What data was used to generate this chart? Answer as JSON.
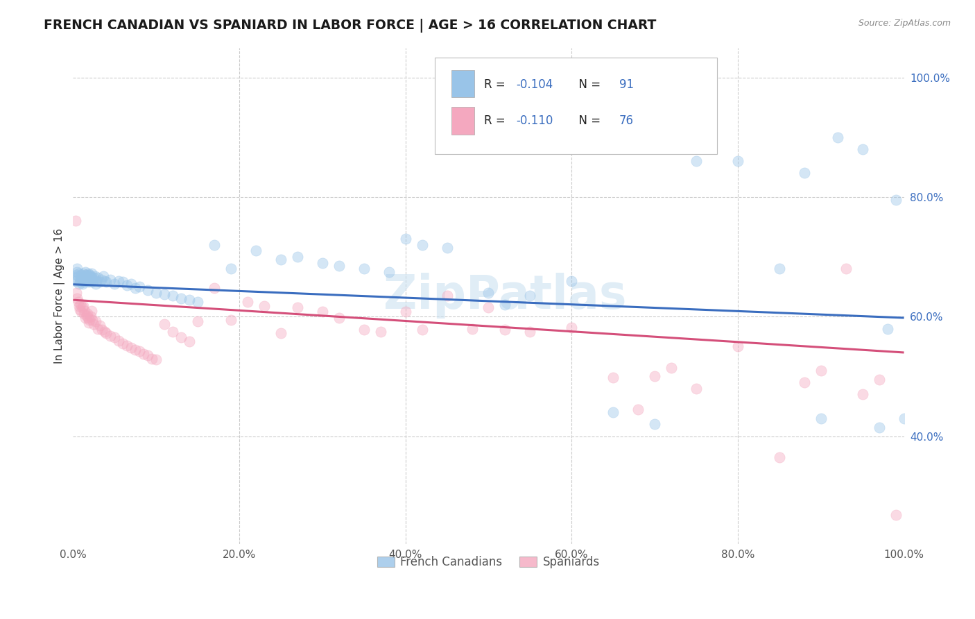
{
  "title": "FRENCH CANADIAN VS SPANIARD IN LABOR FORCE | AGE > 16 CORRELATION CHART",
  "source": "Source: ZipAtlas.com",
  "ylabel": "In Labor Force | Age > 16",
  "x_min": 0.0,
  "x_max": 1.0,
  "y_min": 0.22,
  "y_max": 1.05,
  "background_color": "#ffffff",
  "grid_color": "#cccccc",
  "blue_color": "#99c4e8",
  "pink_color": "#f4a8bf",
  "blue_line_color": "#3a6dbf",
  "pink_line_color": "#d44f7a",
  "legend_R_blue": "R = ",
  "legend_val_blue": "-0.104",
  "legend_N_label": "N = ",
  "legend_N_blue": "91",
  "legend_R_pink": "R = ",
  "legend_val_pink": "-0.110",
  "legend_N_pink": "76",
  "blue_label": "French Canadians",
  "pink_label": "Spaniards",
  "blue_scatter_x": [
    0.002,
    0.003,
    0.004,
    0.005,
    0.005,
    0.006,
    0.007,
    0.007,
    0.008,
    0.009,
    0.01,
    0.01,
    0.011,
    0.011,
    0.012,
    0.012,
    0.013,
    0.013,
    0.014,
    0.015,
    0.015,
    0.016,
    0.016,
    0.017,
    0.017,
    0.018,
    0.018,
    0.019,
    0.02,
    0.02,
    0.021,
    0.021,
    0.022,
    0.022,
    0.023,
    0.024,
    0.025,
    0.026,
    0.027,
    0.028,
    0.03,
    0.032,
    0.034,
    0.036,
    0.038,
    0.04,
    0.045,
    0.05,
    0.055,
    0.06,
    0.065,
    0.07,
    0.075,
    0.08,
    0.09,
    0.1,
    0.11,
    0.12,
    0.13,
    0.14,
    0.15,
    0.17,
    0.19,
    0.22,
    0.25,
    0.27,
    0.3,
    0.32,
    0.35,
    0.38,
    0.4,
    0.42,
    0.45,
    0.5,
    0.52,
    0.55,
    0.6,
    0.65,
    0.7,
    0.72,
    0.75,
    0.8,
    0.85,
    0.88,
    0.9,
    0.92,
    0.95,
    0.97,
    0.98,
    0.99,
    1.0
  ],
  "blue_scatter_y": [
    0.665,
    0.66,
    0.67,
    0.675,
    0.68,
    0.668,
    0.672,
    0.655,
    0.658,
    0.662,
    0.665,
    0.67,
    0.66,
    0.655,
    0.668,
    0.672,
    0.658,
    0.665,
    0.66,
    0.67,
    0.675,
    0.66,
    0.665,
    0.67,
    0.668,
    0.66,
    0.672,
    0.658,
    0.665,
    0.67,
    0.66,
    0.668,
    0.665,
    0.672,
    0.658,
    0.66,
    0.665,
    0.668,
    0.655,
    0.66,
    0.665,
    0.658,
    0.662,
    0.668,
    0.66,
    0.658,
    0.662,
    0.655,
    0.66,
    0.658,
    0.652,
    0.655,
    0.648,
    0.65,
    0.645,
    0.64,
    0.638,
    0.635,
    0.63,
    0.628,
    0.625,
    0.72,
    0.68,
    0.71,
    0.695,
    0.7,
    0.69,
    0.685,
    0.68,
    0.675,
    0.73,
    0.72,
    0.715,
    0.64,
    0.62,
    0.635,
    0.66,
    0.44,
    0.42,
    0.89,
    0.86,
    0.86,
    0.68,
    0.84,
    0.43,
    0.9,
    0.88,
    0.415,
    0.58,
    0.795,
    0.43
  ],
  "pink_scatter_x": [
    0.003,
    0.004,
    0.005,
    0.006,
    0.007,
    0.008,
    0.009,
    0.01,
    0.011,
    0.012,
    0.013,
    0.014,
    0.015,
    0.016,
    0.017,
    0.018,
    0.019,
    0.02,
    0.021,
    0.022,
    0.023,
    0.025,
    0.027,
    0.03,
    0.032,
    0.035,
    0.038,
    0.04,
    0.045,
    0.05,
    0.055,
    0.06,
    0.065,
    0.07,
    0.075,
    0.08,
    0.085,
    0.09,
    0.095,
    0.1,
    0.11,
    0.12,
    0.13,
    0.14,
    0.15,
    0.17,
    0.19,
    0.21,
    0.23,
    0.25,
    0.27,
    0.3,
    0.32,
    0.35,
    0.37,
    0.4,
    0.42,
    0.45,
    0.48,
    0.5,
    0.52,
    0.55,
    0.6,
    0.65,
    0.68,
    0.7,
    0.72,
    0.75,
    0.8,
    0.85,
    0.88,
    0.9,
    0.93,
    0.95,
    0.97,
    0.99
  ],
  "pink_scatter_y": [
    0.76,
    0.64,
    0.63,
    0.625,
    0.618,
    0.612,
    0.62,
    0.608,
    0.615,
    0.618,
    0.605,
    0.61,
    0.598,
    0.602,
    0.605,
    0.598,
    0.59,
    0.595,
    0.6,
    0.61,
    0.595,
    0.588,
    0.592,
    0.58,
    0.585,
    0.578,
    0.575,
    0.572,
    0.568,
    0.565,
    0.56,
    0.555,
    0.552,
    0.548,
    0.545,
    0.542,
    0.538,
    0.535,
    0.53,
    0.528,
    0.588,
    0.575,
    0.565,
    0.558,
    0.592,
    0.648,
    0.595,
    0.625,
    0.618,
    0.572,
    0.615,
    0.608,
    0.598,
    0.578,
    0.575,
    0.608,
    0.578,
    0.635,
    0.58,
    0.615,
    0.578,
    0.575,
    0.582,
    0.498,
    0.445,
    0.5,
    0.515,
    0.48,
    0.55,
    0.365,
    0.49,
    0.51,
    0.68,
    0.47,
    0.495,
    0.268
  ],
  "blue_trend_y_start": 0.654,
  "blue_trend_y_end": 0.598,
  "pink_trend_y_start": 0.628,
  "pink_trend_y_end": 0.54,
  "watermark": "ZipPatlas",
  "title_fontsize": 13.5,
  "axis_label_fontsize": 11,
  "tick_fontsize": 11,
  "scatter_size": 120,
  "scatter_alpha": 0.42,
  "line_width": 2.2
}
